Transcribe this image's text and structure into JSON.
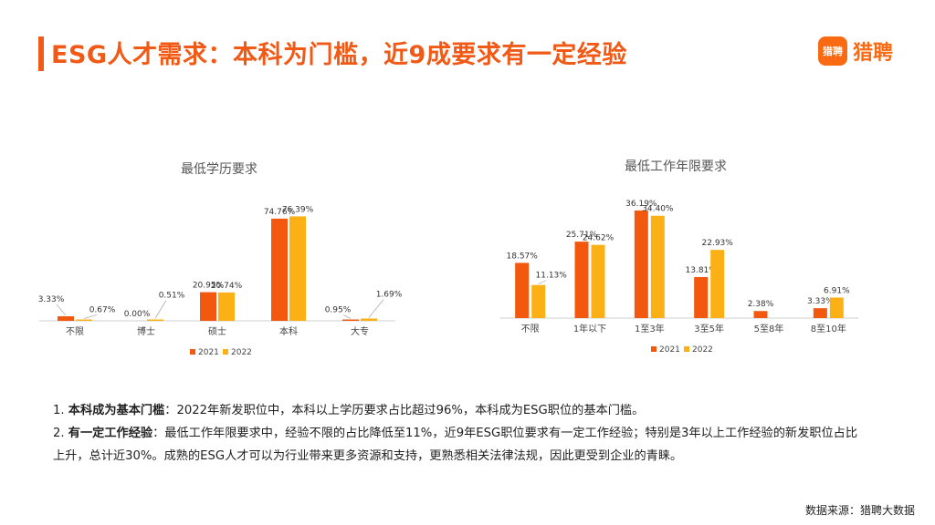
{
  "header": {
    "title": "ESG人才需求：本科为门槛，近9成要求有一定经验",
    "logo_icon_text": "猎聘",
    "logo_text": "猎聘"
  },
  "colors": {
    "accent": "#f05a16",
    "series_2021": "#f2590f",
    "series_2022": "#fbb116"
  },
  "chart_data": [
    {
      "type": "bar",
      "title": "最低学历要求",
      "categories": [
        "不限",
        "博士",
        "硕士",
        "本科",
        "大专"
      ],
      "series": [
        {
          "name": "2021",
          "values": [
            3.33,
            0.0,
            20.95,
            74.76,
            0.95
          ],
          "labels": [
            "3.33%",
            "0.00%",
            "20.95%",
            "74.76%",
            "0.95%"
          ]
        },
        {
          "name": "2022",
          "values": [
            0.67,
            0.51,
            20.74,
            76.39,
            1.69
          ],
          "labels": [
            "0.67%",
            "0.51%",
            "20.74%",
            "76.39%",
            "1.69%"
          ]
        }
      ],
      "ylim": [
        0,
        80
      ],
      "grid": false,
      "legend": "bottom"
    },
    {
      "type": "bar",
      "title": "最低工作年限要求",
      "categories": [
        "不限",
        "1年以下",
        "1至3年",
        "3至5年",
        "5至8年",
        "8至10年"
      ],
      "series": [
        {
          "name": "2021",
          "values": [
            18.57,
            25.71,
            36.19,
            13.81,
            2.38,
            3.33
          ],
          "labels": [
            "18.57%",
            "25.71%",
            "36.19%",
            "13.81%",
            "2.38%",
            "3.33%"
          ]
        },
        {
          "name": "2022",
          "values": [
            11.13,
            24.62,
            34.4,
            22.93,
            0,
            6.91
          ],
          "labels": [
            "11.13%",
            "24.62%",
            "34.40%",
            "22.93%",
            "",
            "6.91%"
          ]
        }
      ],
      "ylim": [
        0,
        38
      ],
      "grid": false,
      "legend": "bottom"
    }
  ],
  "notes": [
    {
      "lead": "本科成为基本门槛",
      "text": "：2022年新发职位中，本科以上学历要求占比超过96%，本科成为ESG职位的基本门槛。"
    },
    {
      "lead": "有一定工作经验",
      "text": "：最低工作年限要求中，经验不限的占比降低至11%，近9年ESG职位要求有一定工作经验；特别是3年以上工作经验的新发职位占比上升，总计近30%。成熟的ESG人才可以为行业带来更多资源和支持，更熟悉相关法律法规，因此更受到企业的青睐。"
    }
  ],
  "source": "数据来源：猎聘大数据"
}
